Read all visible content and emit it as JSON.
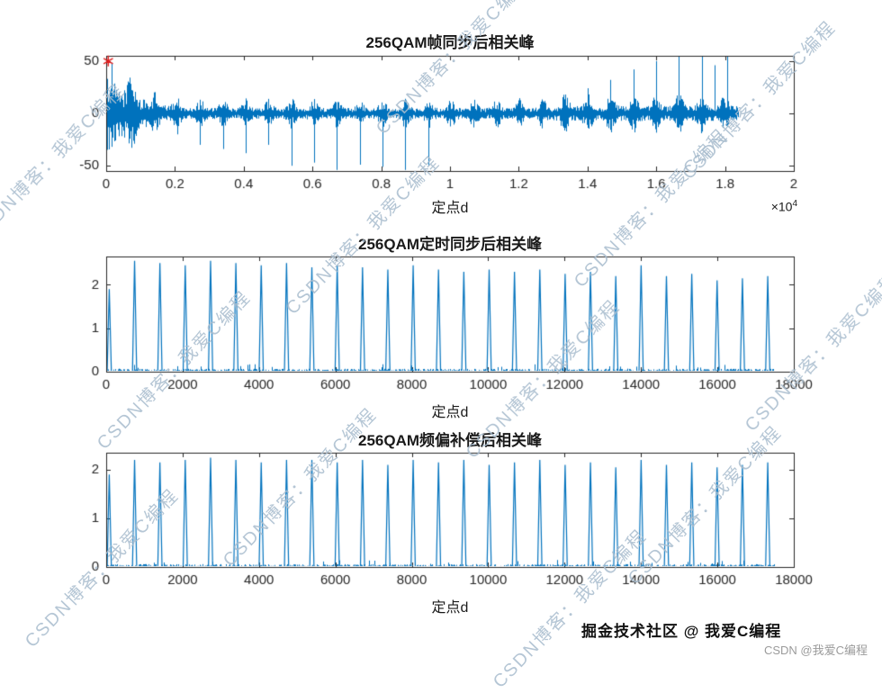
{
  "style": {
    "background": "#ffffff",
    "line_color": "#0072BD",
    "marker_color": "#e02020",
    "axis_color": "#262626"
  },
  "watermark": {
    "text": "CSDN博客：我爱C编程",
    "color": "rgba(168,188,206,0.85)"
  },
  "footer": {
    "juejin": "掘金技术社区 @ 我爱C编程",
    "csdn": "CSDN @我爱C编程"
  },
  "chart_data": [
    {
      "type": "line",
      "name": "frame-sync-correlation",
      "title": "256QAM帧同步后相关峰",
      "xlabel": "定点d",
      "x_scale_prefix": "×10",
      "x_scale_exponent": "4",
      "xlim": [
        0,
        20000
      ],
      "ylim": [
        -55,
        55
      ],
      "xticks": [
        0,
        2000,
        4000,
        6000,
        8000,
        10000,
        12000,
        14000,
        16000,
        18000,
        20000
      ],
      "xtick_labels": [
        "0",
        "0.2",
        "0.4",
        "0.6",
        "0.8",
        "1",
        "1.2",
        "1.4",
        "1.6",
        "1.8",
        "2"
      ],
      "yticks": [
        -50,
        0,
        50
      ],
      "ytick_labels": [
        "-50",
        "0",
        "50"
      ],
      "signal": {
        "x_end": 18400,
        "frame_period": 663,
        "frame_offset": 80,
        "noise_profile": [
          {
            "x0": 0,
            "x1": 150,
            "amp": 26
          },
          {
            "x0": 150,
            "x1": 700,
            "amp": 40
          },
          {
            "x0": 700,
            "x1": 1200,
            "amp": 24
          },
          {
            "x0": 1200,
            "x1": 2000,
            "amp": 14
          },
          {
            "x0": 2000,
            "x1": 13000,
            "amp": 9.5
          },
          {
            "x0": 13000,
            "x1": 18400,
            "amp": 13
          }
        ],
        "down_spikes": [
          [
            2069,
            -20
          ],
          [
            2732,
            -30
          ],
          [
            3395,
            -34
          ],
          [
            4058,
            -38
          ],
          [
            4721,
            -30
          ],
          [
            5384,
            -50
          ],
          [
            6047,
            -47
          ],
          [
            6710,
            -54
          ],
          [
            7373,
            -49
          ],
          [
            8036,
            -51
          ],
          [
            8699,
            -54
          ],
          [
            9362,
            -50
          ]
        ],
        "up_spikes": [
          [
            13340,
            18
          ],
          [
            14003,
            24
          ],
          [
            14666,
            32
          ],
          [
            15329,
            42
          ],
          [
            15992,
            50
          ],
          [
            16655,
            55
          ],
          [
            17318,
            55
          ],
          [
            17700,
            46
          ],
          [
            18050,
            55
          ]
        ],
        "marker": {
          "x": 60,
          "y": 50,
          "symbol": "*"
        }
      }
    },
    {
      "type": "line",
      "name": "timing-sync-correlation",
      "title": "256QAM定时同步后相关峰",
      "xlabel": "定点d",
      "xlim": [
        0,
        18000
      ],
      "ylim": [
        0,
        2.65
      ],
      "xticks": [
        0,
        2000,
        4000,
        6000,
        8000,
        10000,
        12000,
        14000,
        16000,
        18000
      ],
      "xtick_labels": [
        "0",
        "2000",
        "4000",
        "6000",
        "8000",
        "10000",
        "12000",
        "14000",
        "16000",
        "18000"
      ],
      "yticks": [
        0,
        1,
        2
      ],
      "ytick_labels": [
        "0",
        "1",
        "2"
      ],
      "peaks": {
        "x_end": 17500,
        "base_half_width": 55,
        "x": [
          80,
          743,
          1406,
          2069,
          2732,
          3395,
          4058,
          4721,
          5384,
          6047,
          6710,
          7373,
          8036,
          8699,
          9362,
          10025,
          10688,
          11351,
          12014,
          12677,
          13340,
          14003,
          14666,
          15329,
          15992,
          16655,
          17318
        ],
        "heights": [
          1.9,
          2.55,
          2.5,
          2.45,
          2.55,
          2.5,
          2.45,
          2.5,
          2.4,
          2.45,
          2.4,
          2.35,
          2.45,
          2.35,
          2.3,
          2.35,
          2.3,
          2.35,
          2.25,
          2.3,
          2.2,
          2.45,
          2.2,
          2.25,
          2.1,
          2.15,
          2.2
        ]
      }
    },
    {
      "type": "line",
      "name": "freq-offset-compensated-correlation",
      "title": "256QAM频偏补偿后相关峰",
      "xlabel": "定点d",
      "xlim": [
        0,
        18000
      ],
      "ylim": [
        0,
        2.35
      ],
      "xticks": [
        0,
        2000,
        4000,
        6000,
        8000,
        10000,
        12000,
        14000,
        16000,
        18000
      ],
      "xtick_labels": [
        "0",
        "2000",
        "4000",
        "6000",
        "8000",
        "10000",
        "12000",
        "14000",
        "16000",
        "18000"
      ],
      "yticks": [
        0,
        1,
        2
      ],
      "ytick_labels": [
        "0",
        "1",
        "2"
      ],
      "peaks": {
        "x_end": 17500,
        "base_half_width": 55,
        "x": [
          80,
          743,
          1406,
          2069,
          2732,
          3395,
          4058,
          4721,
          5384,
          6047,
          6710,
          7373,
          8036,
          8699,
          9362,
          10025,
          10688,
          11351,
          12014,
          12677,
          13340,
          14003,
          14666,
          15329,
          15992,
          16655,
          17318
        ],
        "heights": [
          1.9,
          2.2,
          2.15,
          2.2,
          2.25,
          2.2,
          2.15,
          2.2,
          2.2,
          2.15,
          2.2,
          2.1,
          2.2,
          2.15,
          2.2,
          2.1,
          2.15,
          2.2,
          2.1,
          2.15,
          2.05,
          2.2,
          2.1,
          2.15,
          2.05,
          2.1,
          2.15
        ]
      }
    }
  ]
}
